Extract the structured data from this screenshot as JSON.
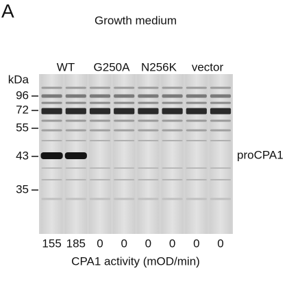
{
  "panel_label": "A",
  "title": "Growth medium",
  "lanes": {
    "groups": [
      "WT",
      "G250A",
      "N256K",
      "vector"
    ]
  },
  "markers": {
    "unit": "kDa",
    "sizes": [
      96,
      72,
      55,
      43,
      35
    ]
  },
  "band_label": "proCPA1",
  "activity": {
    "values": [
      155,
      185,
      0,
      0,
      0,
      0,
      0,
      0
    ],
    "caption": "CPA1 activity (mOD/min)"
  }
}
